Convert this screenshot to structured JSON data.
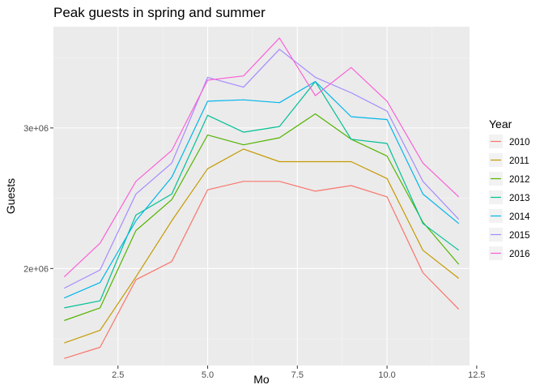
{
  "chart_data": {
    "type": "line",
    "title": "Peak guests in spring and summer",
    "xlabel": "Mo",
    "ylabel": "Guests",
    "xlim": [
      0.7,
      12.3
    ],
    "ylim": [
      1310000,
      3720000
    ],
    "x_ticks": [
      2.5,
      5.0,
      7.5,
      10.0,
      12.5
    ],
    "x_tick_labels": [
      "2.5",
      "5.0",
      "7.5",
      "10.0",
      "12.5"
    ],
    "y_ticks": [
      2000000,
      3000000
    ],
    "y_tick_labels": [
      "2e+06",
      "3e+06"
    ],
    "grid": true,
    "legend": {
      "title": "Year",
      "position": "right"
    },
    "x": [
      1,
      2,
      3,
      4,
      5,
      6,
      7,
      8,
      9,
      10,
      11,
      12
    ],
    "series": [
      {
        "name": "2010",
        "color": "#F8766D",
        "values": [
          1360000,
          1440000,
          1920000,
          2050000,
          2560000,
          2620000,
          2620000,
          2550000,
          2590000,
          2510000,
          1970000,
          1710000
        ]
      },
      {
        "name": "2011",
        "color": "#C49A00",
        "values": [
          1470000,
          1560000,
          1940000,
          2340000,
          2710000,
          2850000,
          2760000,
          2760000,
          2760000,
          2640000,
          2130000,
          1930000
        ]
      },
      {
        "name": "2012",
        "color": "#53B400",
        "values": [
          1630000,
          1720000,
          2270000,
          2490000,
          2950000,
          2880000,
          2930000,
          3100000,
          2920000,
          2800000,
          2330000,
          2030000
        ]
      },
      {
        "name": "2013",
        "color": "#00C094",
        "values": [
          1720000,
          1770000,
          2380000,
          2530000,
          3090000,
          2970000,
          3010000,
          3330000,
          2920000,
          2890000,
          2320000,
          2130000
        ]
      },
      {
        "name": "2014",
        "color": "#00B6EB",
        "values": [
          1790000,
          1900000,
          2340000,
          2650000,
          3190000,
          3200000,
          3180000,
          3330000,
          3080000,
          3060000,
          2530000,
          2320000
        ]
      },
      {
        "name": "2015",
        "color": "#A58AFF",
        "values": [
          1860000,
          1990000,
          2530000,
          2750000,
          3360000,
          3290000,
          3560000,
          3360000,
          3250000,
          3120000,
          2620000,
          2350000
        ]
      },
      {
        "name": "2016",
        "color": "#FB61D7",
        "values": [
          1940000,
          2180000,
          2620000,
          2840000,
          3340000,
          3370000,
          3640000,
          3230000,
          3430000,
          3190000,
          2750000,
          2510000
        ]
      }
    ]
  }
}
